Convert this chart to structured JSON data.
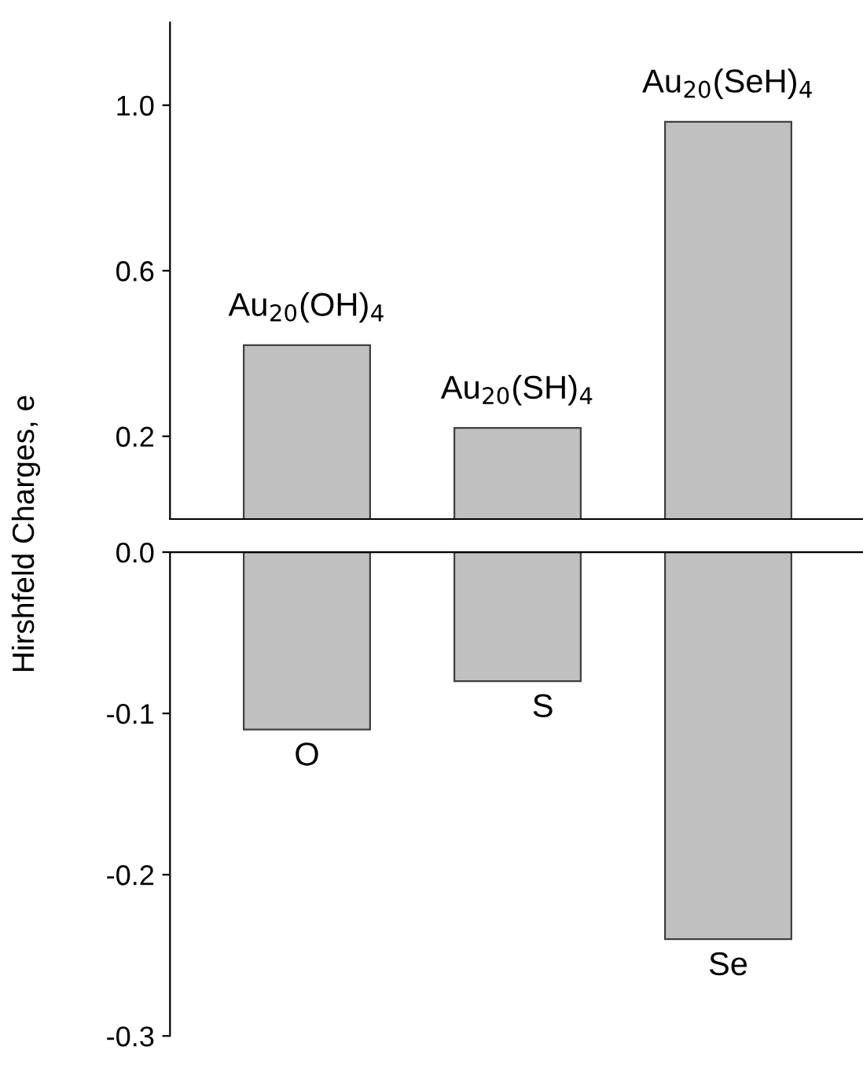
{
  "chart_data": [
    {
      "type": "bar",
      "ylabel": "Hirshfeld Charges, e",
      "categories": [
        null,
        null,
        null
      ],
      "values": [
        0.42,
        0.22,
        0.96
      ],
      "color": "#c0c0c0",
      "ylim": [
        0,
        1.2
      ],
      "yticks": [
        {
          "value": 0.2,
          "label": "0.2"
        },
        {
          "value": 0.6,
          "label": "0.6"
        },
        {
          "value": 1.0,
          "label": "1.0"
        }
      ],
      "tick_labels": "y",
      "grid": false,
      "annotations": [
        "Au$_{20}$(OH)$_{4}$",
        "Au$_{20}$(SH)$_{4}$",
        "Au$_{20}$(SeH)$_{4}$"
      ]
    },
    {
      "type": "bar",
      "categories": [
        null,
        null,
        null
      ],
      "values": [
        -0.11,
        -0.08,
        -0.24
      ],
      "color": "#c0c0c0",
      "ylim": [
        -0.3,
        0.0
      ],
      "yticks": [
        {
          "value": 0.0,
          "label": "0.0"
        },
        {
          "value": -0.1,
          "label": "-0.1"
        },
        {
          "value": -0.2,
          "label": "-0.2"
        },
        {
          "value": -0.3,
          "label": "-0.3"
        }
      ],
      "tick_labels": "y",
      "grid": false,
      "annotations": [
        "O",
        "S",
        "Se"
      ]
    }
  ]
}
